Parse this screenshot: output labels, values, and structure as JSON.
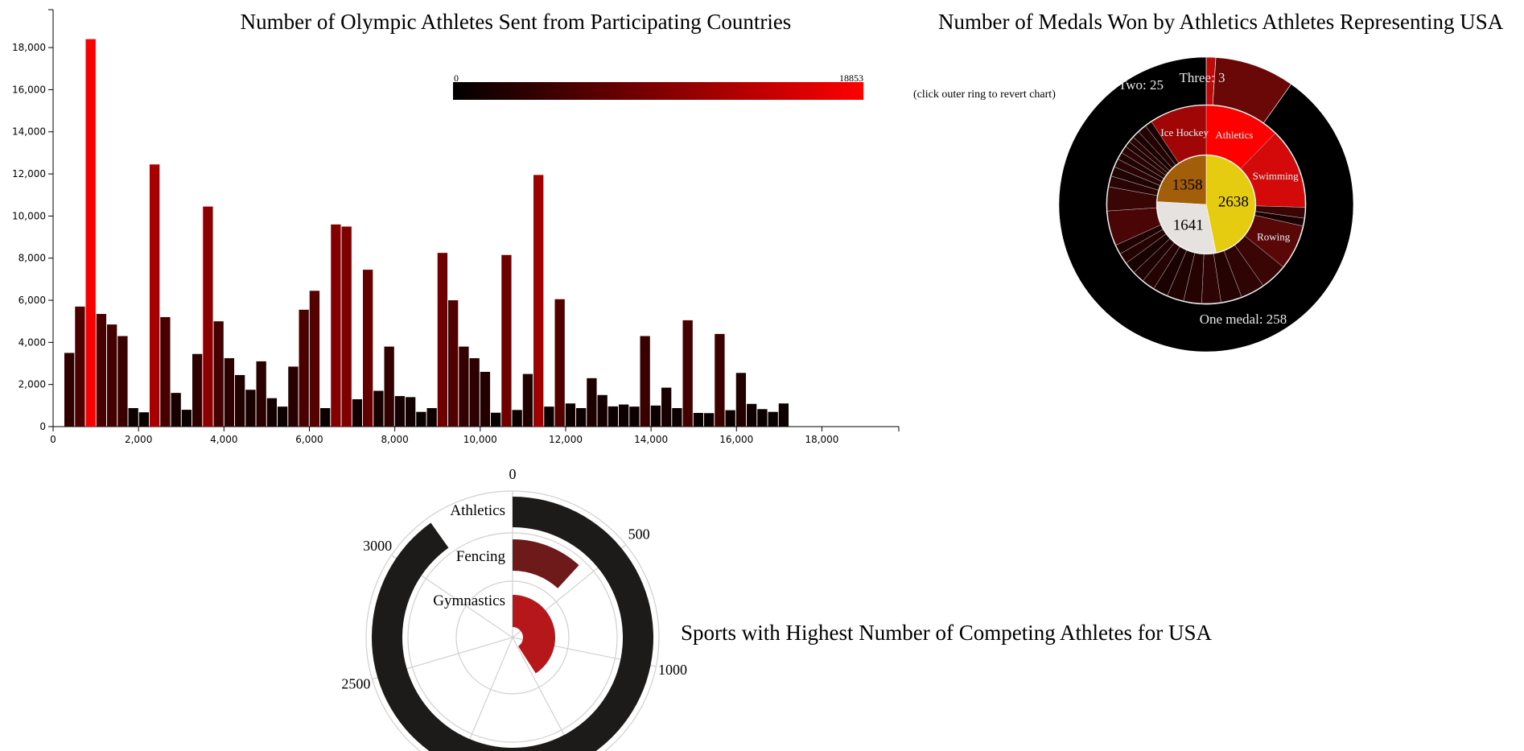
{
  "chart_data": [
    {
      "type": "bar",
      "title": "Number of Olympic Athletes Sent from Participating Countries",
      "xlabel": "",
      "ylabel": "",
      "x_tick_labels": [
        "0",
        "2,000",
        "4,000",
        "6,000",
        "8,000",
        "10,000",
        "12,000",
        "14,000",
        "16,000",
        "18,000"
      ],
      "y_tick_labels": [
        "0",
        "2,000",
        "4,000",
        "6,000",
        "8,000",
        "10,000",
        "12,000",
        "14,000",
        "16,000",
        "18,000"
      ],
      "xlim": [
        0,
        19800
      ],
      "ylim": [
        0,
        19800
      ],
      "grid": false,
      "color_scale": {
        "min_label": "0",
        "max_label": "18853",
        "min": 0,
        "max": 18853,
        "low_color": "#000000",
        "high_color": "#ff0000"
      },
      "values": [
        3500,
        5700,
        18400,
        5350,
        4850,
        4300,
        880,
        680,
        12450,
        5200,
        1600,
        800,
        3450,
        10450,
        5000,
        3250,
        2450,
        1750,
        3100,
        1350,
        950,
        2850,
        5550,
        6450,
        880,
        9600,
        9500,
        1300,
        7450,
        1700,
        3800,
        1450,
        1400,
        700,
        880,
        8250,
        6000,
        3800,
        3250,
        2600,
        660,
        8150,
        790,
        2500,
        11950,
        950,
        6050,
        1100,
        880,
        2300,
        1500,
        960,
        1050,
        950,
        4300,
        1000,
        1850,
        880,
        5050,
        650,
        640,
        4400,
        780,
        2550,
        1080,
        830,
        700,
        1100
      ]
    },
    {
      "type": "sunburst",
      "title": "Number of Medals Won by Athletics Athletes Representing USA",
      "note": "(click outer ring to revert chart)",
      "center_ring": [
        {
          "label": "2638",
          "value": 2638,
          "color": "#e5cc10"
        },
        {
          "label": "1641",
          "value": 1641,
          "color": "#e6e2e0"
        },
        {
          "label": "1358",
          "value": 1358,
          "color": "#a35e0a"
        }
      ],
      "middle_ring": [
        {
          "label": "Athletics",
          "value": 0.125,
          "color": "#ff0000"
        },
        {
          "label": "Swimming",
          "value": 0.135,
          "color": "#d40a0a"
        },
        {
          "label": "",
          "value": 0.018,
          "color": "#3a0505"
        },
        {
          "label": "",
          "value": 0.013,
          "color": "#1a0202"
        },
        {
          "label": "Rowing",
          "value": 0.075,
          "color": "#5a0707"
        },
        {
          "label": "",
          "value": 0.045,
          "color": "#3a0505"
        },
        {
          "label": "",
          "value": 0.04,
          "color": "#2e0404"
        },
        {
          "label": "",
          "value": 0.035,
          "color": "#250303"
        },
        {
          "label": "",
          "value": 0.032,
          "color": "#2e0404"
        },
        {
          "label": "",
          "value": 0.03,
          "color": "#250303"
        },
        {
          "label": "",
          "value": 0.028,
          "color": "#1f0303"
        },
        {
          "label": "",
          "value": 0.025,
          "color": "#1a0202"
        },
        {
          "label": "",
          "value": 0.022,
          "color": "#250303"
        },
        {
          "label": "",
          "value": 0.02,
          "color": "#1f0303"
        },
        {
          "label": "",
          "value": 0.02,
          "color": "#1a0202"
        },
        {
          "label": "",
          "value": 0.018,
          "color": "#250303"
        },
        {
          "label": "",
          "value": 0.016,
          "color": "#1f0303"
        },
        {
          "label": "",
          "value": 0.058,
          "color": "#4a0606"
        },
        {
          "label": "",
          "value": 0.04,
          "color": "#3a0505"
        },
        {
          "label": "",
          "value": 0.018,
          "color": "#2a0404"
        },
        {
          "label": "",
          "value": 0.016,
          "color": "#200303"
        },
        {
          "label": "",
          "value": 0.014,
          "color": "#2a0404"
        },
        {
          "label": "",
          "value": 0.012,
          "color": "#200303"
        },
        {
          "label": "",
          "value": 0.012,
          "color": "#2a0404"
        },
        {
          "label": "",
          "value": 0.01,
          "color": "#200303"
        },
        {
          "label": "",
          "value": 0.01,
          "color": "#2a0404"
        },
        {
          "label": "",
          "value": 0.012,
          "color": "#1a0202"
        },
        {
          "label": "",
          "value": 0.015,
          "color": "#250303"
        },
        {
          "label": "",
          "value": 0.012,
          "color": "#1a0202"
        },
        {
          "label": "Ice Hockey",
          "value": 0.095,
          "color": "#a00606"
        }
      ],
      "outer_ring": [
        {
          "label": "One medal: 258",
          "value": 258,
          "color": "#000000",
          "text_color": "#e8e8e8"
        },
        {
          "label": "Two: 25",
          "value": 25,
          "color": "#6a0707",
          "text_color": "#e8e8e8"
        },
        {
          "label": "Three: 3",
          "value": 3,
          "color": "#c00a0a",
          "text_color": "#e8e8e8"
        }
      ]
    },
    {
      "type": "radial_bar",
      "title": "Sports with Highest Number of Competing Athletes for USA",
      "scale_max": 3550,
      "tick_labels": [
        "0",
        "500",
        "1000",
        "2500",
        "3000"
      ],
      "tick_values": [
        0,
        500,
        1000,
        2500,
        3000
      ],
      "series": [
        {
          "name": "Athletics",
          "value": 3200,
          "color": "#1d1a1a"
        },
        {
          "name": "Fencing",
          "value": 420,
          "color": "#6e1a1a"
        },
        {
          "name": "Gymnastics",
          "value": 1450,
          "color": "#b5171a"
        }
      ]
    }
  ]
}
